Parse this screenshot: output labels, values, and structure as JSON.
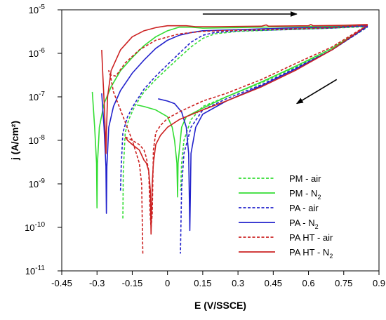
{
  "chart_data": {
    "type": "line",
    "xlabel": "E (V/SSCE)",
    "ylabel": "j (A/cm²)",
    "xlim": [
      -0.45,
      0.9
    ],
    "ylim": [
      1e-11,
      1e-05
    ],
    "y_scale": "log",
    "grid": false,
    "legend_position": "bottom-right",
    "x_ticks": [
      -0.45,
      -0.3,
      -0.15,
      0,
      0.15,
      0.3,
      0.45,
      0.6,
      0.75,
      0.9
    ],
    "x_tick_labels": [
      "-0.45",
      "-0.3",
      "-0.15",
      "0",
      "0.15",
      "0.3",
      "0.45",
      "0.6",
      "0.75",
      "0.9"
    ],
    "y_ticks": [
      {
        "value": 1e-11,
        "base": "10",
        "exp": "-11"
      },
      {
        "value": 1e-10,
        "base": "10",
        "exp": "-10"
      },
      {
        "value": 1e-09,
        "base": "10",
        "exp": "-9"
      },
      {
        "value": 1e-08,
        "base": "10",
        "exp": "-8"
      },
      {
        "value": 1e-07,
        "base": "10",
        "exp": "-7"
      },
      {
        "value": 1e-06,
        "base": "10",
        "exp": "-6"
      },
      {
        "value": 1e-05,
        "base": "10",
        "exp": "-5"
      }
    ],
    "series": [
      {
        "name": "PM - air",
        "label_main": "PM - air",
        "label_sub": "",
        "color": "#33dd33",
        "dashed": true,
        "points": [
          [
            -0.19,
            1.6e-10
          ],
          [
            -0.188,
            2e-09
          ],
          [
            -0.18,
            1.5e-08
          ],
          [
            -0.165,
            3e-08
          ],
          [
            -0.14,
            6e-08
          ],
          [
            -0.1,
            1.3e-07
          ],
          [
            -0.05,
            2.5e-07
          ],
          [
            0,
            4.5e-07
          ],
          [
            0.05,
            8e-07
          ],
          [
            0.1,
            1.4e-06
          ],
          [
            0.15,
            2.2e-06
          ],
          [
            0.2,
            2.8e-06
          ],
          [
            0.3,
            3.2e-06
          ],
          [
            0.5,
            3.5e-06
          ],
          [
            0.7,
            3.8e-06
          ],
          [
            0.85,
            4.1e-06
          ],
          [
            0.85,
            4e-06
          ],
          [
            0.7,
            1.2e-06
          ],
          [
            0.55,
            5e-07
          ],
          [
            0.4,
            2.1e-07
          ],
          [
            0.25,
            1e-07
          ],
          [
            0.15,
            6e-08
          ],
          [
            0.1,
            3e-08
          ],
          [
            0.07,
            1e-08
          ],
          [
            0.06,
            3e-09
          ],
          [
            0.056,
            7e-10
          ]
        ]
      },
      {
        "name": "PM - N2",
        "label_main": "PM - N",
        "label_sub": "2",
        "color": "#33dd33",
        "dashed": false,
        "points": [
          [
            -0.32,
            1.3e-07
          ],
          [
            -0.31,
            2e-08
          ],
          [
            -0.302,
            3e-09
          ],
          [
            -0.3,
            2.8e-10
          ],
          [
            -0.298,
            3e-09
          ],
          [
            -0.29,
            2e-08
          ],
          [
            -0.27,
            7e-08
          ],
          [
            -0.24,
            1.7e-07
          ],
          [
            -0.2,
            4e-07
          ],
          [
            -0.15,
            8e-07
          ],
          [
            -0.1,
            1.5e-06
          ],
          [
            -0.05,
            2.4e-06
          ],
          [
            0,
            3.3e-06
          ],
          [
            0.05,
            4e-06
          ],
          [
            0.1,
            4e-06
          ],
          [
            0.15,
            3.8e-06
          ],
          [
            0.3,
            3.9e-06
          ],
          [
            0.5,
            4.1e-06
          ],
          [
            0.7,
            4.2e-06
          ],
          [
            0.85,
            4.3e-06
          ],
          [
            0.85,
            4.2e-06
          ],
          [
            0.7,
            1.3e-06
          ],
          [
            0.55,
            5.2e-07
          ],
          [
            0.4,
            2.2e-07
          ],
          [
            0.25,
            1e-07
          ],
          [
            0.15,
            5.5e-08
          ],
          [
            0.1,
            4e-08
          ],
          [
            0.08,
            3.5e-08
          ],
          [
            0.06,
            2e-08
          ],
          [
            0.045,
            3e-09
          ],
          [
            0.043,
            5e-10
          ],
          [
            0.04,
            3e-09
          ],
          [
            0.03,
            1e-08
          ],
          [
            0.02,
            2e-08
          ],
          [
            0,
            3.5e-08
          ],
          [
            -0.05,
            5e-08
          ],
          [
            -0.1,
            6e-08
          ],
          [
            -0.13,
            6.5e-08
          ]
        ]
      },
      {
        "name": "PA - air",
        "label_main": "PA - air",
        "label_sub": "",
        "color": "#2222cc",
        "dashed": true,
        "points": [
          [
            -0.2,
            7e-10
          ],
          [
            -0.197,
            2.5e-09
          ],
          [
            -0.19,
            1.5e-08
          ],
          [
            -0.17,
            3.5e-08
          ],
          [
            -0.14,
            7e-08
          ],
          [
            -0.1,
            1.5e-07
          ],
          [
            -0.05,
            3e-07
          ],
          [
            0,
            5.5e-07
          ],
          [
            0.05,
            1e-06
          ],
          [
            0.1,
            1.8e-06
          ],
          [
            0.15,
            2.6e-06
          ],
          [
            0.2,
            3e-06
          ],
          [
            0.3,
            3.3e-06
          ],
          [
            0.5,
            3.5e-06
          ],
          [
            0.7,
            3.8e-06
          ],
          [
            0.85,
            4.3e-06
          ],
          [
            0.85,
            4e-06
          ],
          [
            0.7,
            1.2e-06
          ],
          [
            0.55,
            4.7e-07
          ],
          [
            0.4,
            1.9e-07
          ],
          [
            0.25,
            9e-08
          ],
          [
            0.15,
            5e-08
          ],
          [
            0.1,
            2e-08
          ],
          [
            0.07,
            5e-09
          ],
          [
            0.06,
            8e-10
          ],
          [
            0.055,
            2.5e-11
          ]
        ]
      },
      {
        "name": "PA - N2",
        "label_main": "PA - N",
        "label_sub": "2",
        "color": "#2222cc",
        "dashed": false,
        "points": [
          [
            -0.28,
            1.2e-07
          ],
          [
            -0.27,
            2e-08
          ],
          [
            -0.262,
            2.5e-09
          ],
          [
            -0.26,
            2.1e-10
          ],
          [
            -0.258,
            2.5e-09
          ],
          [
            -0.25,
            2e-08
          ],
          [
            -0.23,
            6e-08
          ],
          [
            -0.2,
            1.4e-07
          ],
          [
            -0.15,
            3.5e-07
          ],
          [
            -0.1,
            7e-07
          ],
          [
            -0.05,
            1.3e-06
          ],
          [
            0,
            2e-06
          ],
          [
            0.05,
            2.6e-06
          ],
          [
            0.1,
            3e-06
          ],
          [
            0.15,
            3.3e-06
          ],
          [
            0.3,
            3.5e-06
          ],
          [
            0.5,
            3.8e-06
          ],
          [
            0.7,
            4e-06
          ],
          [
            0.85,
            4.3e-06
          ],
          [
            0.85,
            4.2e-06
          ],
          [
            0.7,
            1.2e-06
          ],
          [
            0.55,
            4.5e-07
          ],
          [
            0.4,
            1.8e-07
          ],
          [
            0.25,
            8e-08
          ],
          [
            0.15,
            4e-08
          ],
          [
            0.12,
            2e-08
          ],
          [
            0.1,
            5e-09
          ],
          [
            0.095,
            8.5e-11
          ],
          [
            0.09,
            5e-09
          ],
          [
            0.08,
            2e-08
          ],
          [
            0.06,
            4.5e-08
          ],
          [
            0.03,
            7e-08
          ],
          [
            0,
            8e-08
          ],
          [
            -0.04,
            9e-08
          ]
        ]
      },
      {
        "name": "PA HT - air",
        "label_main": "PA HT - air",
        "label_sub": "",
        "color": "#cc2222",
        "dashed": true,
        "points": [
          [
            -0.105,
            2.5e-11
          ],
          [
            -0.11,
            1e-09
          ],
          [
            -0.12,
            3e-09
          ],
          [
            -0.15,
            1e-08
          ],
          [
            -0.2,
            5e-08
          ],
          [
            -0.23,
            1.3e-07
          ],
          [
            -0.245,
            3.5e-07
          ],
          [
            -0.25,
            4e-07
          ],
          [
            -0.245,
            3.2e-07
          ],
          [
            -0.22,
            3e-07
          ],
          [
            -0.18,
            6e-07
          ],
          [
            -0.12,
            1.2e-06
          ],
          [
            -0.05,
            2e-06
          ],
          [
            0.05,
            2.8e-06
          ],
          [
            0.15,
            3.2e-06
          ],
          [
            0.3,
            3.4e-06
          ],
          [
            0.5,
            3.6e-06
          ],
          [
            0.7,
            3.9e-06
          ],
          [
            0.85,
            4.5e-06
          ],
          [
            0.85,
            4.4e-06
          ],
          [
            0.7,
            1.4e-06
          ],
          [
            0.55,
            6e-07
          ],
          [
            0.4,
            2.5e-07
          ],
          [
            0.25,
            1.2e-07
          ],
          [
            0.15,
            8e-08
          ],
          [
            0.1,
            6e-08
          ],
          [
            0.05,
            4.5e-08
          ],
          [
            0,
            3.2e-08
          ],
          [
            -0.03,
            2.2e-08
          ],
          [
            -0.05,
            1.5e-08
          ],
          [
            -0.06,
            6e-09
          ],
          [
            -0.065,
            2e-10
          ],
          [
            -0.07,
            1e-10
          ],
          [
            -0.074,
            2e-10
          ],
          [
            -0.08,
            2e-09
          ],
          [
            -0.09,
            4e-09
          ],
          [
            -0.1,
            6e-09
          ],
          [
            -0.12,
            8e-09
          ],
          [
            -0.15,
            1e-08
          ],
          [
            -0.18,
            1.2e-08
          ]
        ]
      },
      {
        "name": "PA HT - N2",
        "label_main": "PA HT - N",
        "label_sub": "2",
        "color": "#cc2222",
        "dashed": false,
        "points": [
          [
            -0.28,
            1.2e-06
          ],
          [
            -0.275,
            3e-07
          ],
          [
            -0.268,
            5e-08
          ],
          [
            -0.262,
            5e-09
          ],
          [
            -0.26,
            1.5e-08
          ],
          [
            -0.255,
            1e-07
          ],
          [
            -0.24,
            4e-07
          ],
          [
            -0.2,
            1.2e-06
          ],
          [
            -0.15,
            2.4e-06
          ],
          [
            -0.1,
            3.3e-06
          ],
          [
            -0.05,
            3.9e-06
          ],
          [
            0,
            4.3e-06
          ],
          [
            0.08,
            4.3e-06
          ],
          [
            0.12,
            4.1e-06
          ],
          [
            0.2,
            4.1e-06
          ],
          [
            0.4,
            4.2e-06
          ],
          [
            0.42,
            4.5e-06
          ],
          [
            0.43,
            4.2e-06
          ],
          [
            0.6,
            4.3e-06
          ],
          [
            0.61,
            4.6e-06
          ],
          [
            0.62,
            4.3e-06
          ],
          [
            0.75,
            4.4e-06
          ],
          [
            0.85,
            4.6e-06
          ],
          [
            0.85,
            4.4e-06
          ],
          [
            0.7,
            1.2e-06
          ],
          [
            0.55,
            4.2e-07
          ],
          [
            0.4,
            1.7e-07
          ],
          [
            0.25,
            8e-08
          ],
          [
            0.15,
            5e-08
          ],
          [
            0.05,
            3e-08
          ],
          [
            0,
            2e-08
          ],
          [
            -0.03,
            1.3e-08
          ],
          [
            -0.05,
            8e-09
          ],
          [
            -0.06,
            3e-09
          ],
          [
            -0.065,
            1e-09
          ],
          [
            -0.07,
            7e-11
          ],
          [
            -0.073,
            7e-10
          ],
          [
            -0.08,
            2e-09
          ],
          [
            -0.09,
            3e-09
          ],
          [
            -0.1,
            3.5e-09
          ],
          [
            -0.12,
            6e-09
          ],
          [
            -0.15,
            8e-09
          ],
          [
            -0.17,
            1e-08
          ],
          [
            -0.18,
            1.2e-08
          ]
        ]
      }
    ],
    "arrows": [
      {
        "direction": "right",
        "from": [
          0.15,
          8e-06
        ],
        "to": [
          0.55,
          8e-06
        ]
      },
      {
        "direction": "down-left",
        "from": [
          0.72,
          2.5e-07
        ],
        "to": [
          0.55,
          7e-08
        ]
      }
    ]
  }
}
